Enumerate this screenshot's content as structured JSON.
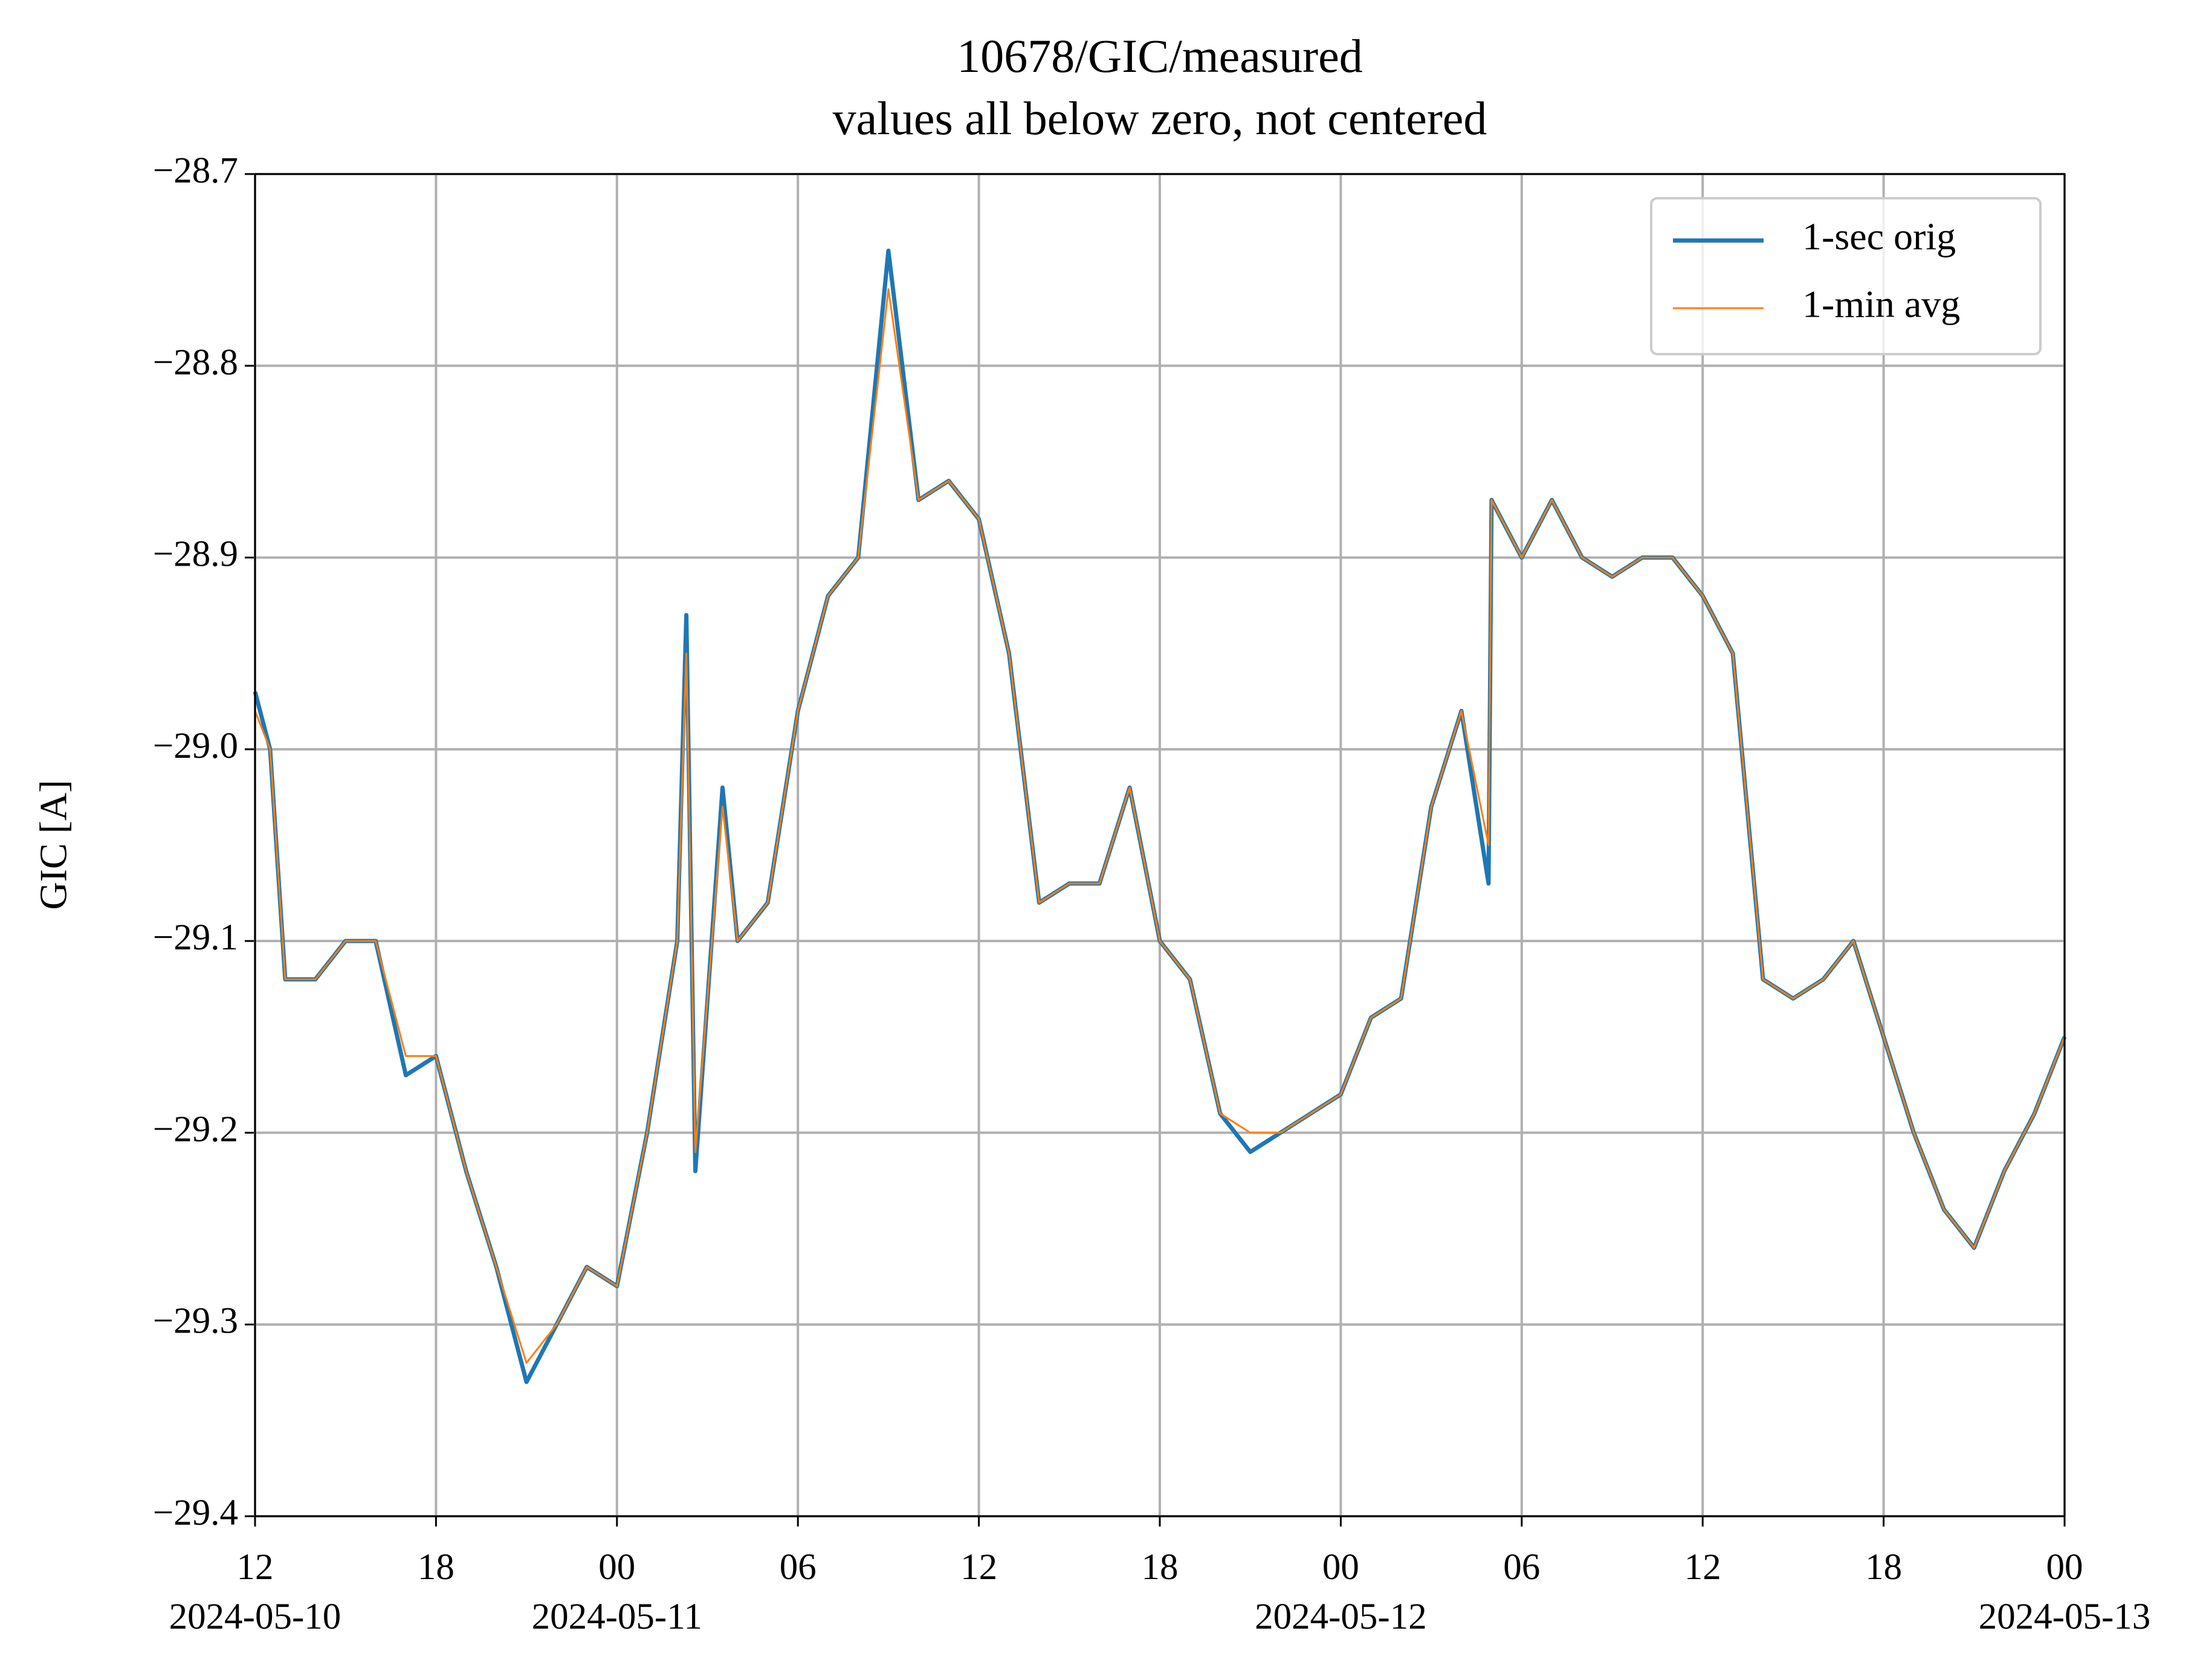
{
  "chart_data": {
    "type": "line",
    "title": "10678/GIC/measured",
    "subtitle": "values all below zero, not centered",
    "ylabel": "GIC [A]",
    "x": [
      "2024-05-10T12:00",
      "2024-05-10T12:30",
      "2024-05-10T13:00",
      "2024-05-10T14:00",
      "2024-05-10T15:00",
      "2024-05-10T16:00",
      "2024-05-10T17:00",
      "2024-05-10T18:00",
      "2024-05-10T19:00",
      "2024-05-10T20:00",
      "2024-05-10T21:00",
      "2024-05-10T22:00",
      "2024-05-10T23:00",
      "2024-05-11T00:00",
      "2024-05-11T01:00",
      "2024-05-11T02:00",
      "2024-05-11T02:18",
      "2024-05-11T02:36",
      "2024-05-11T03:30",
      "2024-05-11T04:00",
      "2024-05-11T05:00",
      "2024-05-11T06:00",
      "2024-05-11T07:00",
      "2024-05-11T08:00",
      "2024-05-11T09:00",
      "2024-05-11T10:00",
      "2024-05-11T11:00",
      "2024-05-11T12:00",
      "2024-05-11T13:00",
      "2024-05-11T14:00",
      "2024-05-11T15:00",
      "2024-05-11T16:00",
      "2024-05-11T17:00",
      "2024-05-11T18:00",
      "2024-05-11T19:00",
      "2024-05-11T20:00",
      "2024-05-11T21:00",
      "2024-05-11T22:00",
      "2024-05-11T23:00",
      "2024-05-12T00:00",
      "2024-05-12T01:00",
      "2024-05-12T02:00",
      "2024-05-12T03:00",
      "2024-05-12T04:00",
      "2024-05-12T04:54",
      "2024-05-12T05:00",
      "2024-05-12T06:00",
      "2024-05-12T07:00",
      "2024-05-12T08:00",
      "2024-05-12T09:00",
      "2024-05-12T10:00",
      "2024-05-12T11:00",
      "2024-05-12T12:00",
      "2024-05-12T13:00",
      "2024-05-12T14:00",
      "2024-05-12T15:00",
      "2024-05-12T16:00",
      "2024-05-12T17:00",
      "2024-05-12T18:00",
      "2024-05-12T19:00",
      "2024-05-12T20:00",
      "2024-05-12T21:00",
      "2024-05-12T22:00",
      "2024-05-12T23:00",
      "2024-05-13T00:00"
    ],
    "series": [
      {
        "name": "1-sec orig",
        "color": "#1f77b4",
        "values": [
          -28.97,
          -29.0,
          -29.12,
          -29.12,
          -29.1,
          -29.1,
          -29.17,
          -29.16,
          -29.22,
          -29.27,
          -29.33,
          -29.3,
          -29.27,
          -29.28,
          -29.2,
          -29.1,
          -28.93,
          -29.22,
          -29.02,
          -29.1,
          -29.08,
          -28.98,
          -28.92,
          -28.9,
          -28.74,
          -28.87,
          -28.86,
          -28.88,
          -28.95,
          -29.08,
          -29.07,
          -29.07,
          -29.02,
          -29.1,
          -29.12,
          -29.19,
          -29.21,
          -29.2,
          -29.19,
          -29.18,
          -29.14,
          -29.13,
          -29.03,
          -28.98,
          -29.07,
          -28.87,
          -28.9,
          -28.87,
          -28.9,
          -28.91,
          -28.9,
          -28.9,
          -28.92,
          -28.95,
          -29.12,
          -29.13,
          -29.12,
          -29.1,
          -29.15,
          -29.2,
          -29.24,
          -29.26,
          -29.22,
          -29.19,
          -29.15
        ]
      },
      {
        "name": "1-min avg",
        "color": "#ff7f0e",
        "values": [
          -28.98,
          -29.0,
          -29.12,
          -29.12,
          -29.1,
          -29.1,
          -29.16,
          -29.16,
          -29.22,
          -29.27,
          -29.32,
          -29.3,
          -29.27,
          -29.28,
          -29.2,
          -29.1,
          -28.95,
          -29.21,
          -29.03,
          -29.1,
          -29.08,
          -28.98,
          -28.92,
          -28.9,
          -28.76,
          -28.87,
          -28.86,
          -28.88,
          -28.95,
          -29.08,
          -29.07,
          -29.07,
          -29.02,
          -29.1,
          -29.12,
          -29.19,
          -29.2,
          -29.2,
          -29.19,
          -29.18,
          -29.14,
          -29.13,
          -29.03,
          -28.98,
          -29.05,
          -28.87,
          -28.9,
          -28.87,
          -28.9,
          -28.91,
          -28.9,
          -28.9,
          -28.92,
          -28.95,
          -29.12,
          -29.13,
          -29.12,
          -29.1,
          -29.15,
          -29.2,
          -29.24,
          -29.26,
          -29.22,
          -29.19,
          -29.15
        ]
      }
    ],
    "xlim": [
      "2024-05-10T12:00",
      "2024-05-13T00:00"
    ],
    "xticks": [
      {
        "value": "2024-05-10T12:00",
        "label": "12\n2024-05-10"
      },
      {
        "value": "2024-05-10T18:00",
        "label": "18"
      },
      {
        "value": "2024-05-11T00:00",
        "label": "00\n2024-05-11"
      },
      {
        "value": "2024-05-11T06:00",
        "label": "06"
      },
      {
        "value": "2024-05-11T12:00",
        "label": "12"
      },
      {
        "value": "2024-05-11T18:00",
        "label": "18"
      },
      {
        "value": "2024-05-12T00:00",
        "label": "00\n2024-05-12"
      },
      {
        "value": "2024-05-12T06:00",
        "label": "06"
      },
      {
        "value": "2024-05-12T12:00",
        "label": "12"
      },
      {
        "value": "2024-05-12T18:00",
        "label": "18"
      },
      {
        "value": "2024-05-13T00:00",
        "label": "00\n2024-05-13"
      }
    ],
    "ylim": [
      -29.4,
      -28.7
    ],
    "yticks": [
      {
        "value": -29.4,
        "label": "−29.4"
      },
      {
        "value": -29.3,
        "label": "−29.3"
      },
      {
        "value": -29.2,
        "label": "−29.2"
      },
      {
        "value": -29.1,
        "label": "−29.1"
      },
      {
        "value": -29.0,
        "label": "−29.0"
      },
      {
        "value": -28.9,
        "label": "−28.9"
      },
      {
        "value": -28.8,
        "label": "−28.8"
      },
      {
        "value": -28.7,
        "label": "−28.7"
      }
    ],
    "grid": true,
    "legend": "upper right"
  }
}
